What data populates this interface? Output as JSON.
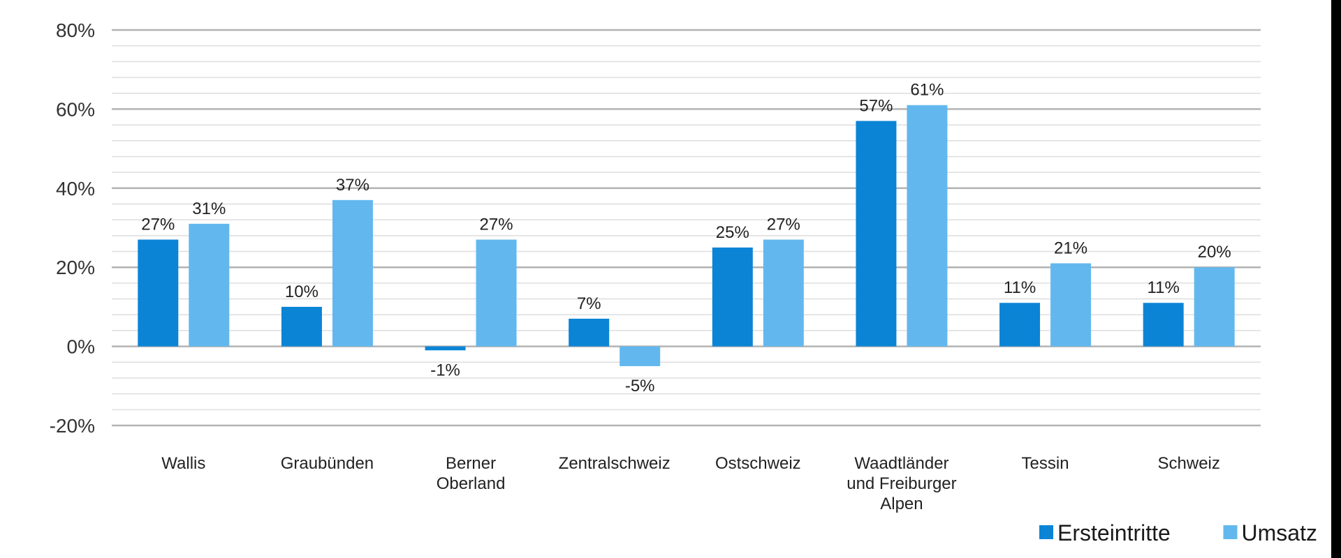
{
  "chart_data": {
    "type": "bar",
    "categories": [
      [
        "Wallis"
      ],
      [
        "Graubünden"
      ],
      [
        "Berner",
        "Oberland"
      ],
      [
        "Zentralschweiz"
      ],
      [
        "Ostschweiz"
      ],
      [
        "Waadtländer",
        "und Freiburger",
        "Alpen"
      ],
      [
        "Tessin"
      ],
      [
        "Schweiz"
      ]
    ],
    "series": [
      {
        "name": "Ersteintritte",
        "color": "#0b84d6",
        "values": [
          27,
          10,
          -1,
          7,
          25,
          57,
          11,
          11
        ],
        "labels": [
          "27%",
          "10%",
          "-1%",
          "7%",
          "25%",
          "57%",
          "11%",
          "11%"
        ]
      },
      {
        "name": "Umsatz",
        "color": "#62b8ee",
        "values": [
          31,
          37,
          27,
          -5,
          27,
          61,
          21,
          20
        ],
        "labels": [
          "31%",
          "37%",
          "27%",
          "-5%",
          "27%",
          "61%",
          "21%",
          "20%"
        ]
      }
    ],
    "ylim": [
      -20,
      80
    ],
    "yticks": [
      -20,
      0,
      20,
      40,
      60,
      80
    ],
    "ytick_labels": [
      "-20%",
      "0%",
      "20%",
      "40%",
      "60%",
      "80%"
    ],
    "minor_gridlines_per_major": 5,
    "title": "",
    "xlabel": "",
    "ylabel": "",
    "grid": true,
    "legend_position": "bottom-right",
    "colors": {
      "grid_major": "#b3b3b3",
      "grid_minor": "#dedede",
      "background": "#ffffff"
    }
  }
}
